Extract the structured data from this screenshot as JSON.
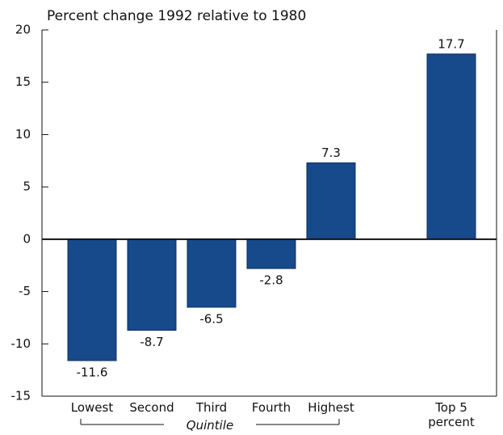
{
  "chart_data": {
    "type": "bar",
    "title": "Percent change 1992 relative to 1980",
    "categories": [
      "Lowest",
      "Second",
      "Third",
      "Fourth",
      "Highest",
      "Top 5 percent"
    ],
    "values": [
      -11.6,
      -8.7,
      -6.5,
      -2.8,
      7.3,
      17.7
    ],
    "group_label": "Quintile",
    "color": "#174a8b",
    "ylim": [
      -15,
      20
    ],
    "yticks": [
      -15,
      -10,
      -5,
      0,
      5,
      10,
      15,
      20
    ],
    "grid": false
  }
}
